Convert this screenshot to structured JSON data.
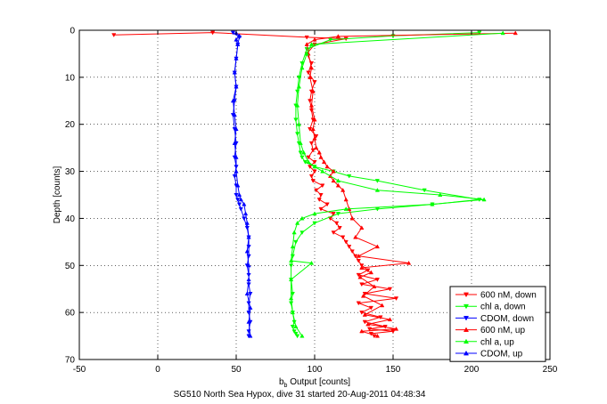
{
  "chart_data": {
    "type": "line",
    "title": "",
    "caption": "SG510 North Sea Hypox, dive 31 started 20-Aug-2011 04:48:34",
    "xlabel": "b_b Output [counts]",
    "ylabel": "Depth [counts]",
    "xlim": [
      -50,
      250
    ],
    "ylim": [
      70,
      0
    ],
    "y_reversed": true,
    "xticks": [
      -50,
      0,
      50,
      100,
      150,
      200,
      250
    ],
    "yticks": [
      0,
      10,
      20,
      30,
      40,
      50,
      60,
      70
    ],
    "grid": true,
    "legend_placement": "bottom-right",
    "series": [
      {
        "name": "600 nM, down",
        "color": "#ff0000",
        "marker": "triangle-down",
        "x": [
          -28,
          35,
          95,
          120,
          100,
          95,
          98,
          96,
          100,
          98,
          97,
          98,
          99,
          97,
          101,
          98,
          99,
          96,
          100,
          97,
          100,
          98,
          99,
          105,
          101,
          104,
          103,
          108,
          104,
          112,
          110,
          114,
          116,
          112,
          118,
          120,
          122,
          124,
          126,
          128,
          130,
          134,
          128,
          140,
          130,
          148,
          132,
          152,
          128,
          136,
          130,
          142,
          132,
          145,
          135,
          150,
          136,
          138
        ],
        "y": [
          1,
          0.5,
          1.5,
          1.8,
          3,
          5,
          7,
          9,
          11,
          13,
          15,
          17,
          19,
          21,
          22.5,
          24,
          25.5,
          27,
          28,
          29,
          30,
          31,
          32,
          33,
          34,
          35,
          36,
          37,
          38,
          39,
          40,
          41,
          42,
          43,
          44,
          45,
          46,
          47,
          48,
          49,
          50,
          51,
          52,
          53,
          54,
          55,
          56,
          57,
          58,
          59,
          60,
          61,
          62,
          63,
          63.5,
          64,
          64.5,
          65
        ]
      },
      {
        "name": "chl a, down",
        "color": "#00ff00",
        "marker": "triangle-down",
        "x": [
          205,
          150,
          110,
          95,
          92,
          90,
          89,
          88,
          88,
          89,
          90,
          91,
          92,
          94,
          100,
          112,
          122,
          140,
          170,
          205,
          175,
          140,
          115,
          100,
          92,
          88,
          86,
          85,
          85,
          86,
          85,
          86,
          87,
          86,
          87,
          88,
          89
        ],
        "y": [
          0.5,
          1.2,
          2,
          4,
          7,
          10,
          13,
          16,
          19,
          22,
          24,
          26,
          27,
          28,
          29,
          30,
          31,
          32,
          34,
          36,
          37,
          38,
          39,
          41,
          43,
          45,
          48,
          50,
          53,
          56,
          58,
          60,
          62,
          63,
          64,
          64.5,
          65
        ]
      },
      {
        "name": "CDOM, down",
        "color": "#0000ff",
        "marker": "triangle-down",
        "x": [
          48,
          52,
          51,
          50,
          49,
          50,
          49,
          48,
          49,
          50,
          49,
          50,
          49,
          50,
          50,
          51,
          52,
          53,
          55,
          57,
          58,
          58,
          58,
          57,
          58,
          58,
          59,
          58,
          58,
          59,
          58,
          58
        ],
        "y": [
          0.5,
          1.5,
          3,
          6,
          9,
          12,
          15,
          18,
          21,
          24,
          27,
          29,
          31,
          33,
          35,
          36,
          37,
          38,
          40,
          42,
          44,
          46,
          48,
          50,
          52,
          54,
          56,
          58,
          60,
          62,
          64,
          65
        ]
      },
      {
        "name": "600 nM, up",
        "color": "#ff0000",
        "marker": "triangle-up",
        "x": [
          140,
          130,
          152,
          134,
          148,
          132,
          143,
          131,
          138,
          129,
          136,
          130,
          160,
          128,
          140,
          126,
          130,
          124,
          122,
          120,
          118,
          115,
          112,
          110,
          112,
          108,
          106,
          104,
          103,
          101,
          100,
          99,
          100,
          98,
          99,
          97,
          98,
          96,
          95,
          100,
          115,
          228
        ],
        "y": [
          65,
          64,
          63.5,
          62.5,
          61.5,
          60.5,
          58.5,
          56.5,
          54.5,
          52.5,
          51.5,
          50.5,
          49.5,
          48,
          46,
          44,
          42,
          40,
          38,
          36,
          34,
          33,
          32,
          31,
          30,
          29,
          28,
          27,
          26,
          25,
          23,
          21,
          19,
          16,
          13,
          10,
          8,
          5,
          3,
          2,
          1.3,
          0.6
        ]
      },
      {
        "name": "chl a, up",
        "color": "#00ff00",
        "marker": "triangle-up",
        "x": [
          92,
          88,
          86,
          85,
          85,
          98,
          85,
          86,
          87,
          89,
          92,
          100,
          120,
          175,
          208,
          180,
          140,
          115,
          105,
          100,
          96,
          93,
          91,
          90,
          89,
          90,
          92,
          95,
          98,
          220
        ],
        "y": [
          65,
          63,
          60,
          57,
          53,
          49.5,
          49,
          46,
          43,
          41,
          40,
          39,
          38,
          37,
          36,
          35,
          34,
          32,
          30,
          29,
          28,
          26,
          24,
          20,
          16,
          12,
          8,
          5,
          3,
          0.6
        ]
      },
      {
        "name": "CDOM, up",
        "color": "#0000ff",
        "marker": "triangle-up",
        "x": [
          59,
          58,
          59,
          57,
          58,
          58,
          57,
          58,
          57,
          56,
          55,
          53,
          52,
          51,
          50,
          50,
          49,
          50,
          49,
          48,
          50,
          49,
          50,
          51,
          50,
          52,
          50
        ],
        "y": [
          65,
          62,
          59,
          56,
          53,
          50,
          47,
          44,
          41,
          39,
          37,
          36,
          35,
          33,
          30,
          27,
          24,
          21,
          18,
          15,
          12,
          9,
          6,
          3,
          2,
          1.2,
          0.6
        ]
      }
    ]
  }
}
